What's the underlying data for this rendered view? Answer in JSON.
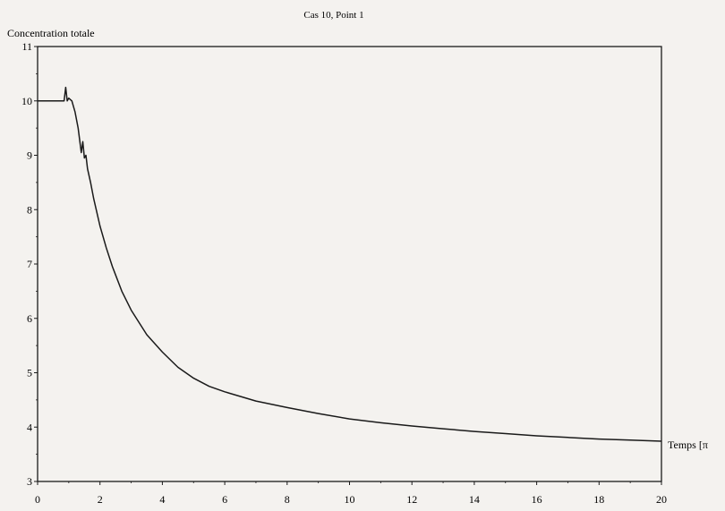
{
  "chart_data": {
    "type": "line",
    "title": "Cas 10, Point 1",
    "ylabel": "Concentration totale",
    "xlabel": "Temps [π",
    "xlim": [
      0,
      20
    ],
    "ylim": [
      3,
      11
    ],
    "xticks": [
      0,
      2,
      4,
      6,
      8,
      10,
      12,
      14,
      16,
      18,
      20
    ],
    "yticks": [
      3,
      4,
      5,
      6,
      7,
      8,
      9,
      10,
      11
    ],
    "grid": false,
    "series": [
      {
        "color": "#1a1a1a",
        "x": [
          0,
          0.5,
          0.85,
          0.9,
          0.95,
          1.0,
          1.1,
          1.2,
          1.3,
          1.4,
          1.45,
          1.5,
          1.55,
          1.6,
          1.7,
          1.8,
          2.0,
          2.2,
          2.4,
          2.7,
          3.0,
          3.5,
          4.0,
          4.5,
          5.0,
          5.5,
          6.0,
          7.0,
          8.0,
          9.0,
          10.0,
          11.0,
          12.0,
          13.0,
          14.0,
          15.0,
          16.0,
          17.0,
          18.0,
          19.0,
          20.0
        ],
        "y": [
          10.0,
          10.0,
          10.0,
          10.25,
          10.0,
          10.05,
          10.0,
          9.8,
          9.5,
          9.05,
          9.25,
          8.95,
          9.0,
          8.75,
          8.5,
          8.2,
          7.7,
          7.3,
          6.95,
          6.5,
          6.15,
          5.7,
          5.38,
          5.1,
          4.9,
          4.75,
          4.65,
          4.48,
          4.36,
          4.25,
          4.15,
          4.08,
          4.02,
          3.97,
          3.92,
          3.88,
          3.84,
          3.81,
          3.78,
          3.76,
          3.74
        ]
      }
    ]
  }
}
